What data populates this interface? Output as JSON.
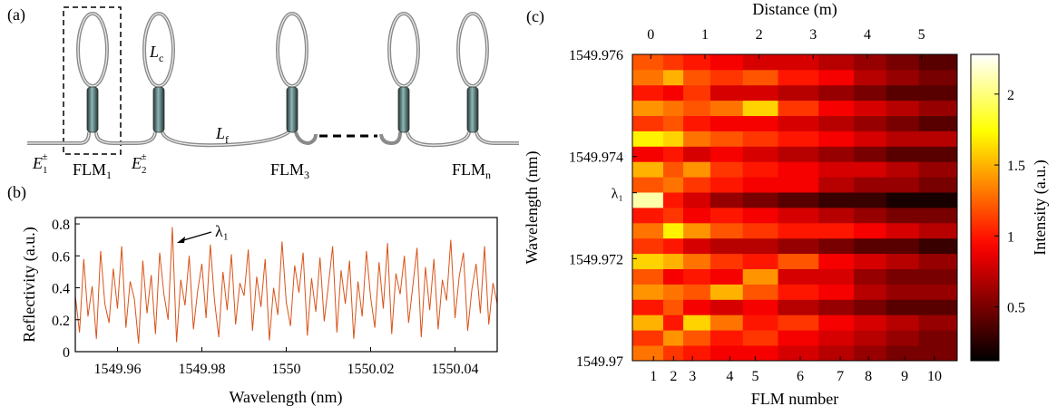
{
  "diagram": {
    "label": "(a)",
    "loop_length": {
      "text": "L",
      "sub": "c"
    },
    "fiber_length": {
      "text": "L",
      "sub": "f"
    },
    "fields": [
      {
        "text": "E",
        "sub": "1",
        "sup": "±"
      },
      {
        "text": "E",
        "sub": "2",
        "sup": "±"
      }
    ],
    "mirrors": [
      {
        "text": "FLM",
        "sub": "1"
      },
      {
        "text": "FLM",
        "sub": "3"
      },
      {
        "text": "FLM",
        "sub": "n"
      }
    ]
  },
  "chart_data": [
    {
      "type": "line",
      "panel_label": "(b)",
      "xlabel": "Wavelength (nm)",
      "ylabel": "Reflectivity (a.u.)",
      "annotation": "λ₁",
      "xlim": [
        1549.95,
        1550.05
      ],
      "xticks": [
        1549.96,
        1549.98,
        1550,
        1550.02,
        1550.04
      ],
      "ylim": [
        0,
        0.84
      ],
      "yticks": [
        0,
        0.2,
        0.4,
        0.6,
        0.8
      ],
      "series": [
        {
          "color": "#d95319",
          "x": [
            1549.95,
            1549.951,
            1549.952,
            1549.953,
            1549.954,
            1549.955,
            1549.956,
            1549.957,
            1549.958,
            1549.959,
            1549.96,
            1549.961,
            1549.962,
            1549.963,
            1549.964,
            1549.965,
            1549.966,
            1549.967,
            1549.968,
            1549.969,
            1549.97,
            1549.971,
            1549.972,
            1549.973,
            1549.974,
            1549.975,
            1549.976,
            1549.977,
            1549.978,
            1549.979,
            1549.98,
            1549.981,
            1549.982,
            1549.983,
            1549.984,
            1549.985,
            1549.986,
            1549.987,
            1549.988,
            1549.989,
            1549.99,
            1549.991,
            1549.992,
            1549.993,
            1549.994,
            1549.995,
            1549.996,
            1549.997,
            1549.998,
            1549.999,
            1550,
            1550.001,
            1550.002,
            1550.003,
            1550.004,
            1550.005,
            1550.006,
            1550.007,
            1550.008,
            1550.009,
            1550.01,
            1550.011,
            1550.012,
            1550.013,
            1550.014,
            1550.015,
            1550.016,
            1550.017,
            1550.018,
            1550.019,
            1550.02,
            1550.021,
            1550.022,
            1550.023,
            1550.024,
            1550.025,
            1550.026,
            1550.027,
            1550.028,
            1550.029,
            1550.03,
            1550.031,
            1550.032,
            1550.033,
            1550.034,
            1550.035,
            1550.036,
            1550.037,
            1550.038,
            1550.039,
            1550.04,
            1550.041,
            1550.042,
            1550.043,
            1550.044,
            1550.045,
            1550.046,
            1550.047,
            1550.048,
            1550.049,
            1550.05
          ],
          "values": [
            0.35,
            0.12,
            0.58,
            0.22,
            0.41,
            0.08,
            0.63,
            0.3,
            0.18,
            0.52,
            0.27,
            0.66,
            0.15,
            0.44,
            0.33,
            0.05,
            0.57,
            0.24,
            0.48,
            0.11,
            0.62,
            0.36,
            0.2,
            0.78,
            0.06,
            0.45,
            0.29,
            0.6,
            0.14,
            0.38,
            0.55,
            0.21,
            0.67,
            0.32,
            0.09,
            0.5,
            0.26,
            0.61,
            0.17,
            0.43,
            0.35,
            0.64,
            0.13,
            0.47,
            0.28,
            0.58,
            0.07,
            0.4,
            0.23,
            0.69,
            0.31,
            0.16,
            0.54,
            0.37,
            0.62,
            0.1,
            0.46,
            0.25,
            0.59,
            0.19,
            0.42,
            0.66,
            0.12,
            0.51,
            0.3,
            0.57,
            0.08,
            0.44,
            0.22,
            0.63,
            0.34,
            0.15,
            0.56,
            0.27,
            0.68,
            0.11,
            0.49,
            0.36,
            0.6,
            0.18,
            0.41,
            0.65,
            0.09,
            0.53,
            0.26,
            0.58,
            0.14,
            0.45,
            0.32,
            0.7,
            0.21,
            0.47,
            0.62,
            0.13,
            0.39,
            0.55,
            0.24,
            0.66,
            0.17,
            0.43,
            0.3
          ]
        }
      ]
    },
    {
      "type": "heatmap",
      "panel_label": "(c)",
      "xlabel": "FLM number",
      "ylabel": "Wavelength (nm)",
      "top_axis": {
        "label": "Distance (m)",
        "ticks": [
          0,
          1,
          2,
          3,
          4,
          5
        ]
      },
      "xlim": [
        -0.34,
        5.66
      ],
      "xticks": [
        {
          "value": 0.05,
          "label": "1"
        },
        {
          "value": 0.42,
          "label": "2"
        },
        {
          "value": 0.77,
          "label": "3"
        },
        {
          "value": 1.46,
          "label": "4"
        },
        {
          "value": 1.93,
          "label": "5"
        },
        {
          "value": 2.76,
          "label": "6"
        },
        {
          "value": 3.5,
          "label": "7"
        },
        {
          "value": 4.02,
          "label": "8"
        },
        {
          "value": 4.69,
          "label": "9"
        },
        {
          "value": 5.24,
          "label": "10"
        }
      ],
      "ylim": [
        1549.97,
        1549.976
      ],
      "yticks": [
        1549.97,
        1549.972,
        {
          "value": 1549.97329,
          "label": "λ₁"
        },
        1549.974,
        1549.976
      ],
      "xbins": [
        -0.34,
        0.23,
        0.6,
        1.1,
        1.7,
        2.35,
        3.1,
        3.75,
        4.35,
        4.95,
        5.66
      ],
      "ybins": [
        1549.97,
        1549.9703,
        1549.9706,
        1549.9709,
        1549.9712,
        1549.9715,
        1549.9718,
        1549.9721,
        1549.9724,
        1549.9727,
        1549.973,
        1549.9733,
        1549.9736,
        1549.9739,
        1549.9742,
        1549.9745,
        1549.9748,
        1549.9751,
        1549.9754,
        1549.9757,
        1549.976
      ],
      "colormap": "hot",
      "colorbar": {
        "label": "Intensity (a.u.)",
        "lim": [
          0.12,
          2.28
        ],
        "ticks": [
          0.5,
          1,
          1.5,
          2
        ]
      },
      "z": [
        [
          1.3,
          1.1,
          1.0,
          0.9,
          0.9,
          0.8,
          0.7,
          0.6,
          0.5,
          0.5
        ],
        [
          1.1,
          1.4,
          1.2,
          1.0,
          1.1,
          0.9,
          0.8,
          0.7,
          0.6,
          0.5
        ],
        [
          1.5,
          1.0,
          1.6,
          1.3,
          1.0,
          1.1,
          0.9,
          0.8,
          0.7,
          0.6
        ],
        [
          1.0,
          1.2,
          0.9,
          0.8,
          0.9,
          0.7,
          0.6,
          0.5,
          0.4,
          0.4
        ],
        [
          1.4,
          1.3,
          1.2,
          1.5,
          1.2,
          1.0,
          0.9,
          0.7,
          0.6,
          0.6
        ],
        [
          1.2,
          0.9,
          1.0,
          0.9,
          1.4,
          0.8,
          0.8,
          0.6,
          0.5,
          0.5
        ],
        [
          1.6,
          1.5,
          1.3,
          1.1,
          1.0,
          1.2,
          0.9,
          0.8,
          0.7,
          0.6
        ],
        [
          1.1,
          1.0,
          0.8,
          0.7,
          0.7,
          0.6,
          0.5,
          0.4,
          0.4,
          0.3
        ],
        [
          1.3,
          1.7,
          1.4,
          1.2,
          1.1,
          1.0,
          1.0,
          0.9,
          0.8,
          0.7
        ],
        [
          1.0,
          1.1,
          0.9,
          1.0,
          0.9,
          0.8,
          0.7,
          0.6,
          0.5,
          0.5
        ],
        [
          2.1,
          1.0,
          0.8,
          0.6,
          0.5,
          0.4,
          0.3,
          0.3,
          0.2,
          0.2
        ],
        [
          1.2,
          1.3,
          1.1,
          1.0,
          0.9,
          0.9,
          0.7,
          0.6,
          0.6,
          0.5
        ],
        [
          1.5,
          1.2,
          1.4,
          1.1,
          1.0,
          0.9,
          0.8,
          0.8,
          0.7,
          0.6
        ],
        [
          0.9,
          1.0,
          0.8,
          0.9,
          0.8,
          0.7,
          0.6,
          0.5,
          0.4,
          0.4
        ],
        [
          1.7,
          1.6,
          1.3,
          1.2,
          1.1,
          1.0,
          0.9,
          0.8,
          0.7,
          0.7
        ],
        [
          1.1,
          1.2,
          1.0,
          0.9,
          0.9,
          0.8,
          0.7,
          0.6,
          0.5,
          0.4
        ],
        [
          1.4,
          1.3,
          1.2,
          1.3,
          1.6,
          1.1,
          0.9,
          0.8,
          0.7,
          0.6
        ],
        [
          1.0,
          0.9,
          1.1,
          0.8,
          0.8,
          0.7,
          0.6,
          0.5,
          0.4,
          0.4
        ],
        [
          1.3,
          1.5,
          1.2,
          1.1,
          1.2,
          1.0,
          0.9,
          0.7,
          0.6,
          0.5
        ],
        [
          1.2,
          1.1,
          1.0,
          0.9,
          0.8,
          0.8,
          0.7,
          0.6,
          0.5,
          0.4
        ]
      ]
    }
  ]
}
